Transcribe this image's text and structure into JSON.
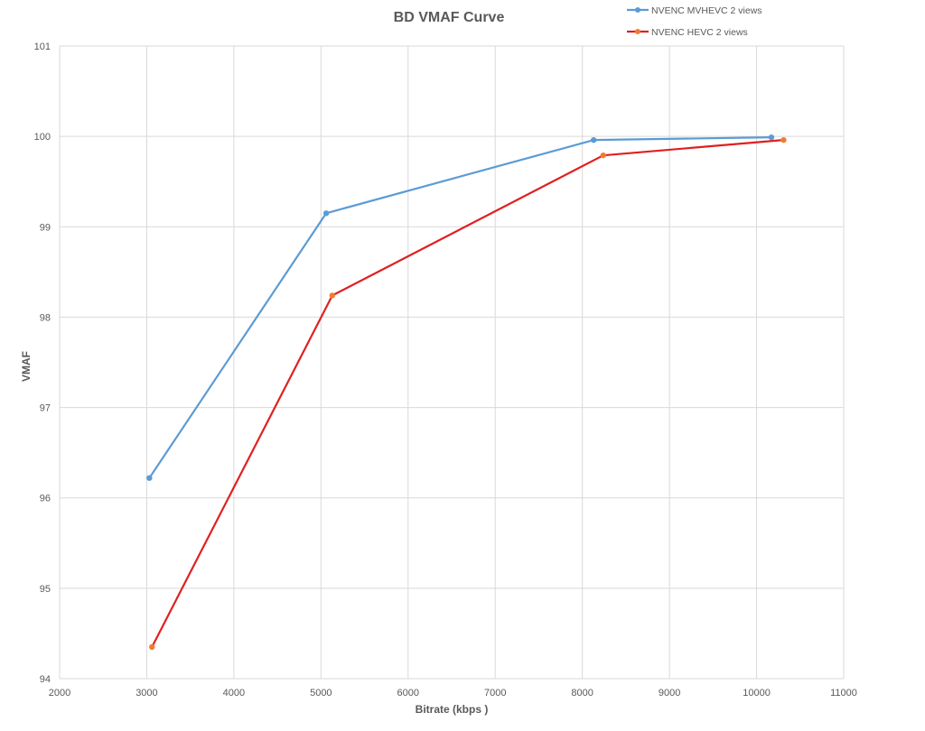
{
  "chart_data": {
    "type": "line",
    "title": "BD VMAF Curve",
    "xlabel": "Bitrate (kbps )",
    "ylabel": "VMAF",
    "xlim": [
      2000,
      11000
    ],
    "ylim": [
      94,
      101
    ],
    "x_ticks": [
      2000,
      3000,
      4000,
      5000,
      6000,
      7000,
      8000,
      9000,
      10000,
      11000
    ],
    "y_ticks": [
      94,
      95,
      96,
      97,
      98,
      99,
      100,
      101
    ],
    "grid": true,
    "legend_position": "top-right",
    "series": [
      {
        "name": "NVENC MVHEVC 2 views",
        "line_color": "#5B9BD5",
        "marker_color": "#5B9BD5",
        "x": [
          3030,
          5060,
          8130,
          10170
        ],
        "y": [
          96.22,
          99.15,
          99.96,
          99.99
        ]
      },
      {
        "name": "NVENC HEVC 2 views",
        "line_color": "#E02020",
        "marker_color": "#ED7D31",
        "x": [
          3060,
          5130,
          8240,
          10310
        ],
        "y": [
          94.35,
          98.24,
          99.79,
          99.96
        ]
      }
    ]
  }
}
